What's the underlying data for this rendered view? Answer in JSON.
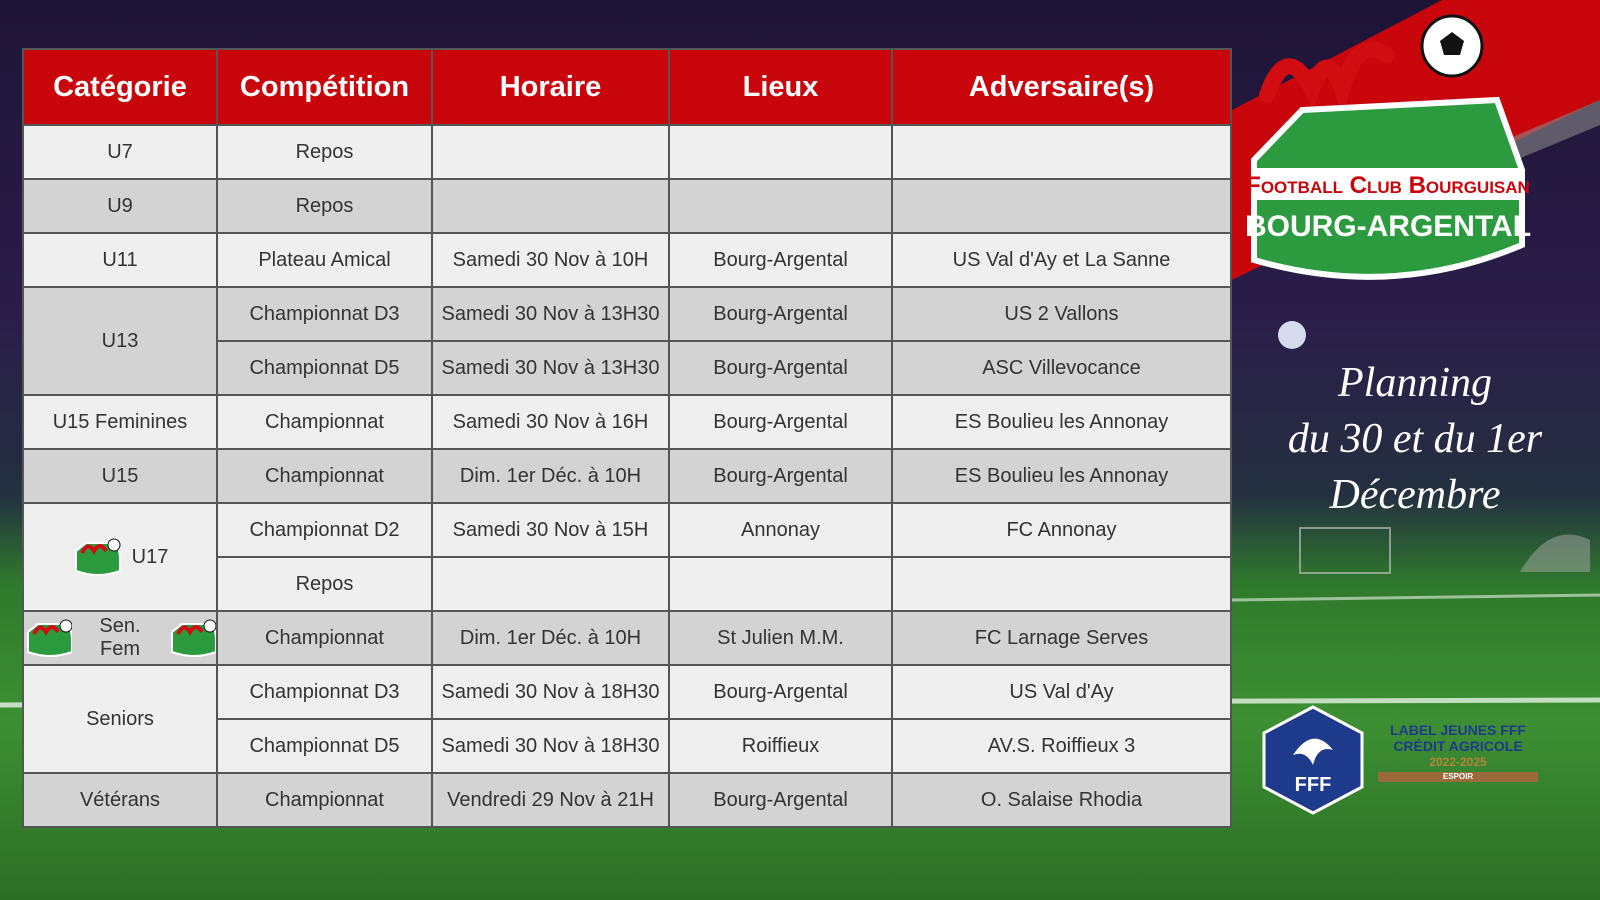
{
  "logo": {
    "club": "Football Club Bourguisan",
    "town": "BOURG-ARGENTAL"
  },
  "planning": [
    "Planning",
    "du 30 et du 1er",
    "Décembre"
  ],
  "badge": {
    "fff": "FFF",
    "label": [
      "LABEL JEUNES FFF",
      "CRÉDIT AGRICOLE"
    ],
    "years": "2022-2025",
    "level": "ESPOIR"
  },
  "table": {
    "headers": [
      "Catégorie",
      "Compétition",
      "Horaire",
      "Lieux",
      "Adversaire(s)"
    ],
    "groups": [
      {
        "category": "U7",
        "rows": [
          [
            "Repos"
          ]
        ]
      },
      {
        "category": "U9",
        "rows": [
          [
            "Repos"
          ]
        ]
      },
      {
        "category": "U11",
        "rows": [
          [
            "Plateau Amical",
            "Samedi 30 Nov à 10H",
            "Bourg-Argental",
            "US Val d'Ay et La Sanne"
          ]
        ]
      },
      {
        "category": "U13",
        "rows": [
          [
            "Championnat D3",
            "Samedi 30 Nov à 13H30",
            "Bourg-Argental",
            "US 2 Vallons"
          ],
          [
            "Championnat D5",
            "Samedi 30 Nov à 13H30",
            "Bourg-Argental",
            "ASC Villevocance"
          ]
        ]
      },
      {
        "category": "U15 Feminines",
        "rows": [
          [
            "Championnat",
            "Samedi 30 Nov à 16H",
            "Bourg-Argental",
            "ES Boulieu les Annonay"
          ]
        ]
      },
      {
        "category": "U15",
        "rows": [
          [
            "Championnat",
            "Dim. 1er Déc. à 10H",
            "Bourg-Argental",
            "ES Boulieu les Annonay"
          ]
        ]
      },
      {
        "category": "U17",
        "rows": [
          [
            "Championnat D2",
            "Samedi 30 Nov à 15H",
            "Annonay",
            "FC Annonay"
          ],
          [
            "Repos"
          ]
        ]
      },
      {
        "category": "Sen. Fem",
        "rows": [
          [
            "Championnat",
            "Dim. 1er Déc. à 10H",
            "St Julien M.M.",
            "FC Larnage Serves"
          ]
        ]
      },
      {
        "category": "Seniors",
        "rows": [
          [
            "Championnat D3",
            "Samedi 30 Nov à 18H30",
            "Bourg-Argental",
            "US Val d'Ay"
          ],
          [
            "Championnat D5",
            "Samedi 30 Nov à 18H30",
            "Roiffieux",
            "AV.S. Roiffieux 3"
          ]
        ]
      },
      {
        "category": "Vétérans",
        "rows": [
          [
            "Championnat",
            "Vendredi 29 Nov à 21H",
            "Bourg-Argental",
            "O. Salaise Rhodia"
          ]
        ]
      }
    ]
  }
}
